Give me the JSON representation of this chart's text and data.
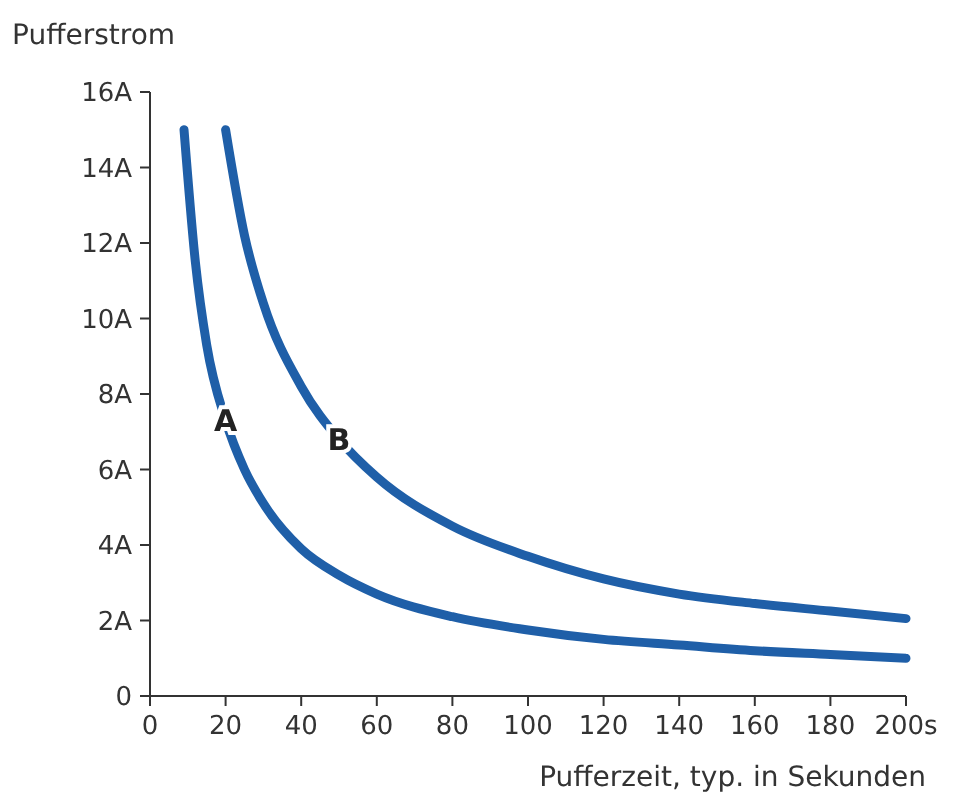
{
  "chart_data": {
    "type": "line",
    "ylabel": "Pufferstrom",
    "xlabel": "Pufferzeit, typ. in Sekunden",
    "xlim": [
      0,
      200
    ],
    "xticks": [
      0,
      20,
      40,
      60,
      80,
      100,
      120,
      140,
      160,
      180,
      {
        "value": 200,
        "label": "200s"
      }
    ],
    "ylim": [
      0,
      16
    ],
    "yticks": [
      0,
      {
        "value": 2,
        "label": "2A"
      },
      {
        "value": 4,
        "label": "4A"
      },
      {
        "value": 6,
        "label": "6A"
      },
      {
        "value": 8,
        "label": "8A"
      },
      {
        "value": 10,
        "label": "10A"
      },
      {
        "value": 12,
        "label": "12A"
      },
      {
        "value": 14,
        "label": "14A"
      },
      {
        "value": 16,
        "label": "16A"
      }
    ],
    "grid": false,
    "marker": "none",
    "line_style": "solid",
    "series": [
      {
        "name": "A",
        "color": "#1f5fa8",
        "x": [
          9,
          12,
          15,
          20,
          25,
          30,
          40,
          50,
          60,
          80,
          100,
          120,
          140,
          160,
          180,
          200
        ],
        "values": [
          15,
          11.5,
          9.3,
          7.3,
          6,
          5.1,
          3.9,
          3.2,
          2.7,
          2.1,
          1.75,
          1.5,
          1.35,
          1.2,
          1.1,
          1
        ]
      },
      {
        "name": "B",
        "color": "#1f5fa8",
        "x": [
          20,
          25,
          30,
          40,
          50,
          60,
          80,
          100,
          120,
          140,
          160,
          180,
          200
        ],
        "values": [
          15,
          12.2,
          10.4,
          8.2,
          6.8,
          5.8,
          4.5,
          3.7,
          3.1,
          2.7,
          2.45,
          2.25,
          2.05
        ]
      }
    ]
  }
}
